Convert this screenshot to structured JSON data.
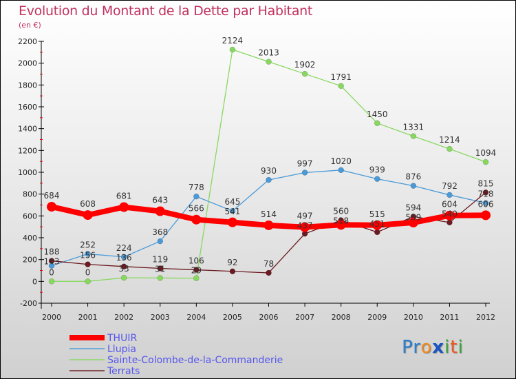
{
  "title": "Evolution du Montant de la Dette par Habitant",
  "subtitle": "(en €)",
  "logo": {
    "text": "Proxiti",
    "parts": [
      [
        "Pr",
        "#2a7fd0"
      ],
      [
        "o",
        "#f08a1c"
      ],
      [
        "x",
        "#1a55c0"
      ],
      [
        "i",
        "#3aa53a"
      ],
      [
        "t",
        "#f05a1c"
      ],
      [
        "i",
        "#3aa53a"
      ]
    ]
  },
  "chart_data": {
    "type": "line",
    "title": "Evolution du Montant de la Dette par Habitant",
    "ylabel": "(en €)",
    "xlabel": "",
    "x": [
      2000,
      2001,
      2002,
      2003,
      2004,
      2005,
      2006,
      2007,
      2008,
      2009,
      2010,
      2011,
      2012
    ],
    "ylim": [
      -200,
      2200
    ],
    "yticks": [
      -200,
      0,
      200,
      400,
      600,
      800,
      1000,
      1200,
      1400,
      1600,
      1800,
      2000,
      2200
    ],
    "legend_position": "bottom-left",
    "series": [
      {
        "name": "THUIR",
        "color": "#ff0000",
        "values": [
          684,
          608,
          681,
          643,
          566,
          541,
          514,
          497,
          518,
          515,
          539,
          604,
          606
        ]
      },
      {
        "name": "Llupia",
        "color": "#4a9ad8",
        "values": [
          143,
          252,
          224,
          368,
          778,
          645,
          930,
          997,
          1020,
          939,
          876,
          792,
          718
        ]
      },
      {
        "name": "Sainte-Colombe-de-la-Commanderie",
        "color": "#88d860",
        "values": [
          0,
          0,
          33,
          31,
          29,
          2124,
          2013,
          1902,
          1791,
          1450,
          1331,
          1214,
          1094
        ]
      },
      {
        "name": "Terrats",
        "color": "#6a1a20",
        "values": [
          188,
          156,
          136,
          119,
          106,
          92,
          78,
          437,
          560,
          451,
          594,
          540,
          815
        ]
      }
    ]
  }
}
